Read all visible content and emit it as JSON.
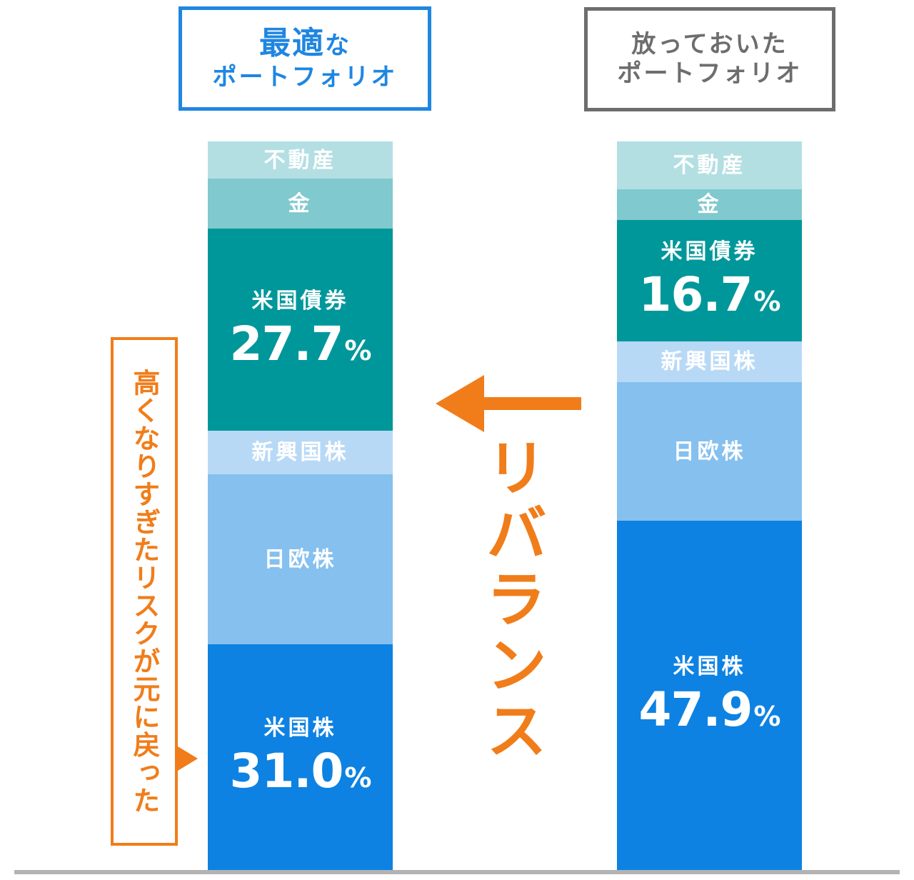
{
  "header": {
    "left": {
      "title_main": "最適",
      "title_suffix": "な",
      "title_line2": "ポートフォリオ"
    },
    "right": {
      "title_line1": "放っておいた",
      "title_line2": "ポートフォリオ"
    }
  },
  "annotations": {
    "note": "高くなりすぎたリスクが元に戻った",
    "rebalance": "リバランス"
  },
  "colors": {
    "accent_blue": "#1f86e1",
    "accent_orange": "#f07d1a",
    "frame_gray": "#6d6d6d",
    "real_estate": "#b3dfe3",
    "gold": "#80c9cf",
    "us_bonds": "#00979a",
    "emerging_stocks": "#b8d9f6",
    "jp_eu_stocks": "#85c0ef",
    "us_stocks": "#0d82e2"
  },
  "chart_data": {
    "type": "bar",
    "stacked": true,
    "orientation": "vertical",
    "categories": [
      "最適なポートフォリオ",
      "放っておいたポートフォリオ"
    ],
    "unit": "%",
    "grid": false,
    "series": [
      {
        "name": "米国株",
        "values": [
          31.0,
          47.9
        ],
        "value_labels": [
          "31.0",
          "47.9"
        ],
        "color": "#0d82e2"
      },
      {
        "name": "日欧株",
        "values": [
          23.3,
          19.0
        ],
        "value_labels": [
          "",
          ""
        ],
        "color": "#85c0ef"
      },
      {
        "name": "新興国株",
        "values": [
          6.0,
          5.6
        ],
        "value_labels": [
          "",
          ""
        ],
        "color": "#b8d9f6"
      },
      {
        "name": "米国債券",
        "values": [
          27.7,
          16.7
        ],
        "value_labels": [
          "27.7",
          "16.7"
        ],
        "color": "#00979a"
      },
      {
        "name": "金",
        "values": [
          6.9,
          4.2
        ],
        "value_labels": [
          "",
          ""
        ],
        "color": "#80c9cf"
      },
      {
        "name": "不動産",
        "values": [
          5.1,
          6.6
        ],
        "value_labels": [
          "",
          ""
        ],
        "color": "#b3dfe3"
      }
    ]
  }
}
